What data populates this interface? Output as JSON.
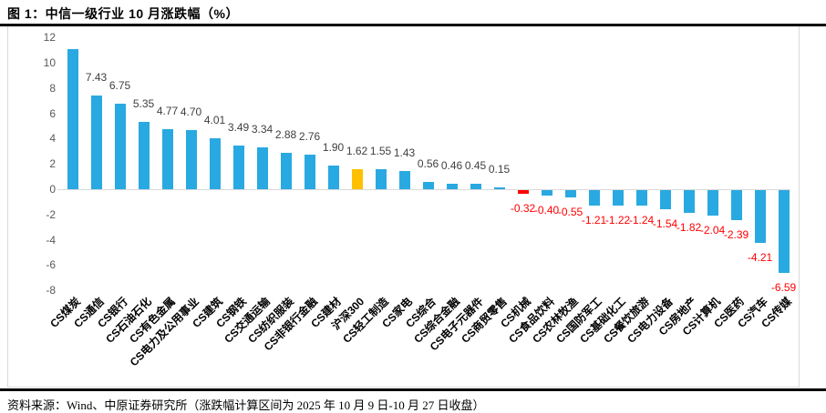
{
  "figure": {
    "title": "图 1：中信一级行业 10 月涨跌幅（%）",
    "source_note": "资料来源：Wind、中原证券研究所（涨跌幅计算区间为 2025 年 10 月 9 日-10 月 27 日收盘）"
  },
  "chart_data": {
    "type": "bar",
    "title": "中信一级行业 10 月涨跌幅（%）",
    "xlabel": "",
    "ylabel": "",
    "ylim": [
      -8,
      12
    ],
    "yticks": [
      12,
      10,
      8,
      6,
      4,
      2,
      0,
      -2,
      -4,
      -6,
      -8
    ],
    "grid": false,
    "legend": false,
    "categories": [
      "CS煤炭",
      "CS通信",
      "CS银行",
      "CS石油石化",
      "CS有色金属",
      "CS电力及公用事业",
      "CS建筑",
      "CS钢铁",
      "CS交通运输",
      "CS纺织服装",
      "CS非银行金融",
      "CS建材",
      "沪深300",
      "CS轻工制造",
      "CS家电",
      "CS综合",
      "CS综合金融",
      "CS电子元器件",
      "CS商贸零售",
      "CS机械",
      "CS食品饮料",
      "CS农林牧渔",
      "CS国防军工",
      "CS基础化工",
      "CS餐饮旅游",
      "CS电力设备",
      "CS房地产",
      "CS计算机",
      "CS医药",
      "CS汽车",
      "CS传媒"
    ],
    "values": [
      11.07,
      7.43,
      6.75,
      5.35,
      4.77,
      4.7,
      4.01,
      3.49,
      3.34,
      2.88,
      2.76,
      1.9,
      1.62,
      1.55,
      1.43,
      0.56,
      0.46,
      0.45,
      0.15,
      -0.32,
      -0.4,
      -0.55,
      -1.21,
      -1.22,
      -1.24,
      -1.54,
      -1.82,
      -2.04,
      -2.39,
      -4.21,
      -6.59
    ],
    "data_labels": [
      "",
      "7.43",
      "6.75",
      "5.35",
      "4.77",
      "4.70",
      "4.01",
      "3.49",
      "3.34",
      "2.88",
      "2.76",
      "1.90",
      "1.62",
      "1.55",
      "1.43",
      "0.56",
      "0.46",
      "0.45",
      "0.15",
      "-0.32",
      "-0.40",
      "-0.55",
      "-1.21",
      "-1.22",
      "-1.24",
      "-1.54",
      "-1.82",
      "-2.04",
      "-2.39",
      "-4.21",
      "-6.59"
    ],
    "highlights": [
      {
        "index": 12,
        "category": "沪深300",
        "color": "#FFC000"
      },
      {
        "index": 19,
        "category": "CS机械",
        "color": "#FF0000"
      }
    ],
    "colors": {
      "bar_default": "#29A9E1",
      "label_positive": "#404040",
      "label_negative": "#FF0000",
      "axis_text": "#595959",
      "axis_line": "#D9D9D9"
    }
  }
}
